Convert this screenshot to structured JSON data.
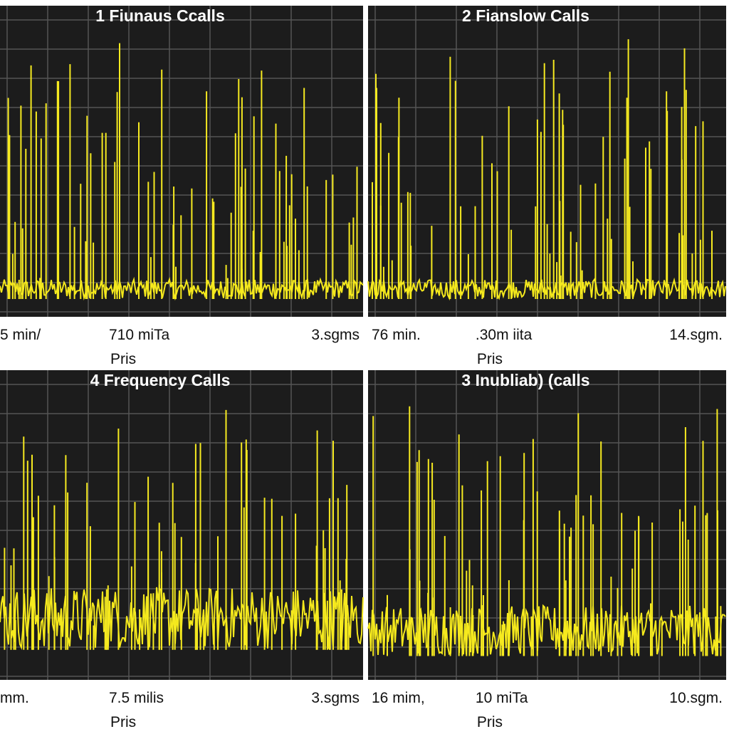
{
  "panels": [
    {
      "title": "1 Fiunaus Ccalls",
      "labels": [
        "5 min/",
        "710 miTa",
        "3.sgms"
      ],
      "sublabel": "Pris"
    },
    {
      "title": "2 Fianslow Calls",
      "labels": [
        "76 min.",
        ".30m iita",
        "14.sgm."
      ],
      "sublabel": "Pris"
    },
    {
      "title": "4 Frequency Calls",
      "labels": [
        "mm.",
        "7.5 milis",
        "3.sgms"
      ],
      "sublabel": "Pris"
    },
    {
      "title": "3 Inubliab) (calls",
      "labels": [
        "16 mim,",
        "10 miTa",
        "10.sgm."
      ],
      "sublabel": "Pris"
    }
  ]
}
